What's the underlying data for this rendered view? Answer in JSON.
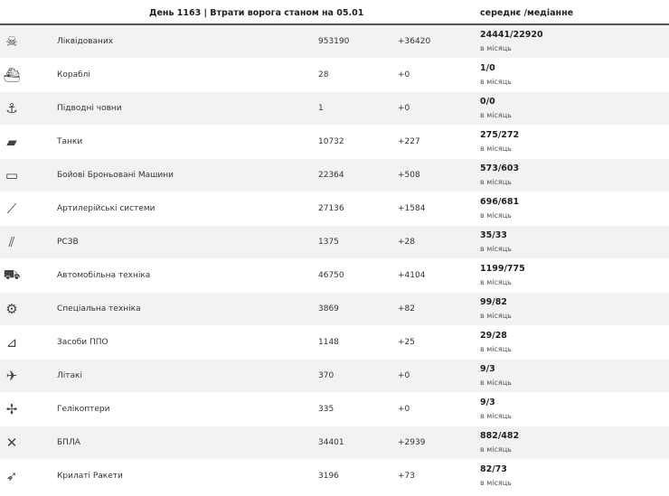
{
  "header": {
    "title": "День 1163 | Втрати ворога станом на 05.01",
    "avg_label": "середнє /медіанне"
  },
  "rows": [
    {
      "icon": "soldiers-icon",
      "glyph": "☠",
      "label": "Ліквідованих",
      "total": "953190",
      "delta": "+36420",
      "stat": "24441/22920",
      "per": "в місяць"
    },
    {
      "icon": "ship-icon",
      "glyph": "⛴",
      "label": "Кораблі",
      "total": "28",
      "delta": "+0",
      "stat": "1/0",
      "per": "в місяць"
    },
    {
      "icon": "submarine-icon",
      "glyph": "⚓",
      "label": "Підводні човни",
      "total": "1",
      "delta": "+0",
      "stat": "0/0",
      "per": "в місяць"
    },
    {
      "icon": "tank-icon",
      "glyph": "▰",
      "label": "Танки",
      "total": "10732",
      "delta": "+227",
      "stat": "275/272",
      "per": "в місяць"
    },
    {
      "icon": "armored-vehicle-icon",
      "glyph": "▭",
      "label": "Бойові Броньовані Машини",
      "total": "22364",
      "delta": "+508",
      "stat": "573/603",
      "per": "в місяць"
    },
    {
      "icon": "artillery-icon",
      "glyph": "⟋",
      "label": "Артилерійські системи",
      "total": "27136",
      "delta": "+1584",
      "stat": "696/681",
      "per": "в місяць"
    },
    {
      "icon": "mlrs-icon",
      "glyph": "⫽",
      "label": "РСЗВ",
      "total": "1375",
      "delta": "+28",
      "stat": "35/33",
      "per": "в місяць"
    },
    {
      "icon": "truck-icon",
      "glyph": "⛟",
      "label": "Автомобільна техніка",
      "total": "46750",
      "delta": "+4104",
      "stat": "1199/775",
      "per": "в місяць"
    },
    {
      "icon": "special-equipment-icon",
      "glyph": "⚙",
      "label": "Спеціальна техніка",
      "total": "3869",
      "delta": "+82",
      "stat": "99/82",
      "per": "в місяць"
    },
    {
      "icon": "air-defense-icon",
      "glyph": "⊿",
      "label": "Засоби ППО",
      "total": "1148",
      "delta": "+25",
      "stat": "29/28",
      "per": "в місяць"
    },
    {
      "icon": "plane-icon",
      "glyph": "✈",
      "label": "Літакі",
      "total": "370",
      "delta": "+0",
      "stat": "9/3",
      "per": "в місяць"
    },
    {
      "icon": "helicopter-icon",
      "glyph": "✢",
      "label": "Гелікоптери",
      "total": "335",
      "delta": "+0",
      "stat": "9/3",
      "per": "в місяць"
    },
    {
      "icon": "drone-icon",
      "glyph": "✕",
      "label": "БПЛА",
      "total": "34401",
      "delta": "+2939",
      "stat": "882/482",
      "per": "в місяць"
    },
    {
      "icon": "missile-icon",
      "glyph": "➶",
      "label": "Крилаті Ракети",
      "total": "3196",
      "delta": "+73",
      "stat": "82/73",
      "per": "в місяць"
    }
  ]
}
